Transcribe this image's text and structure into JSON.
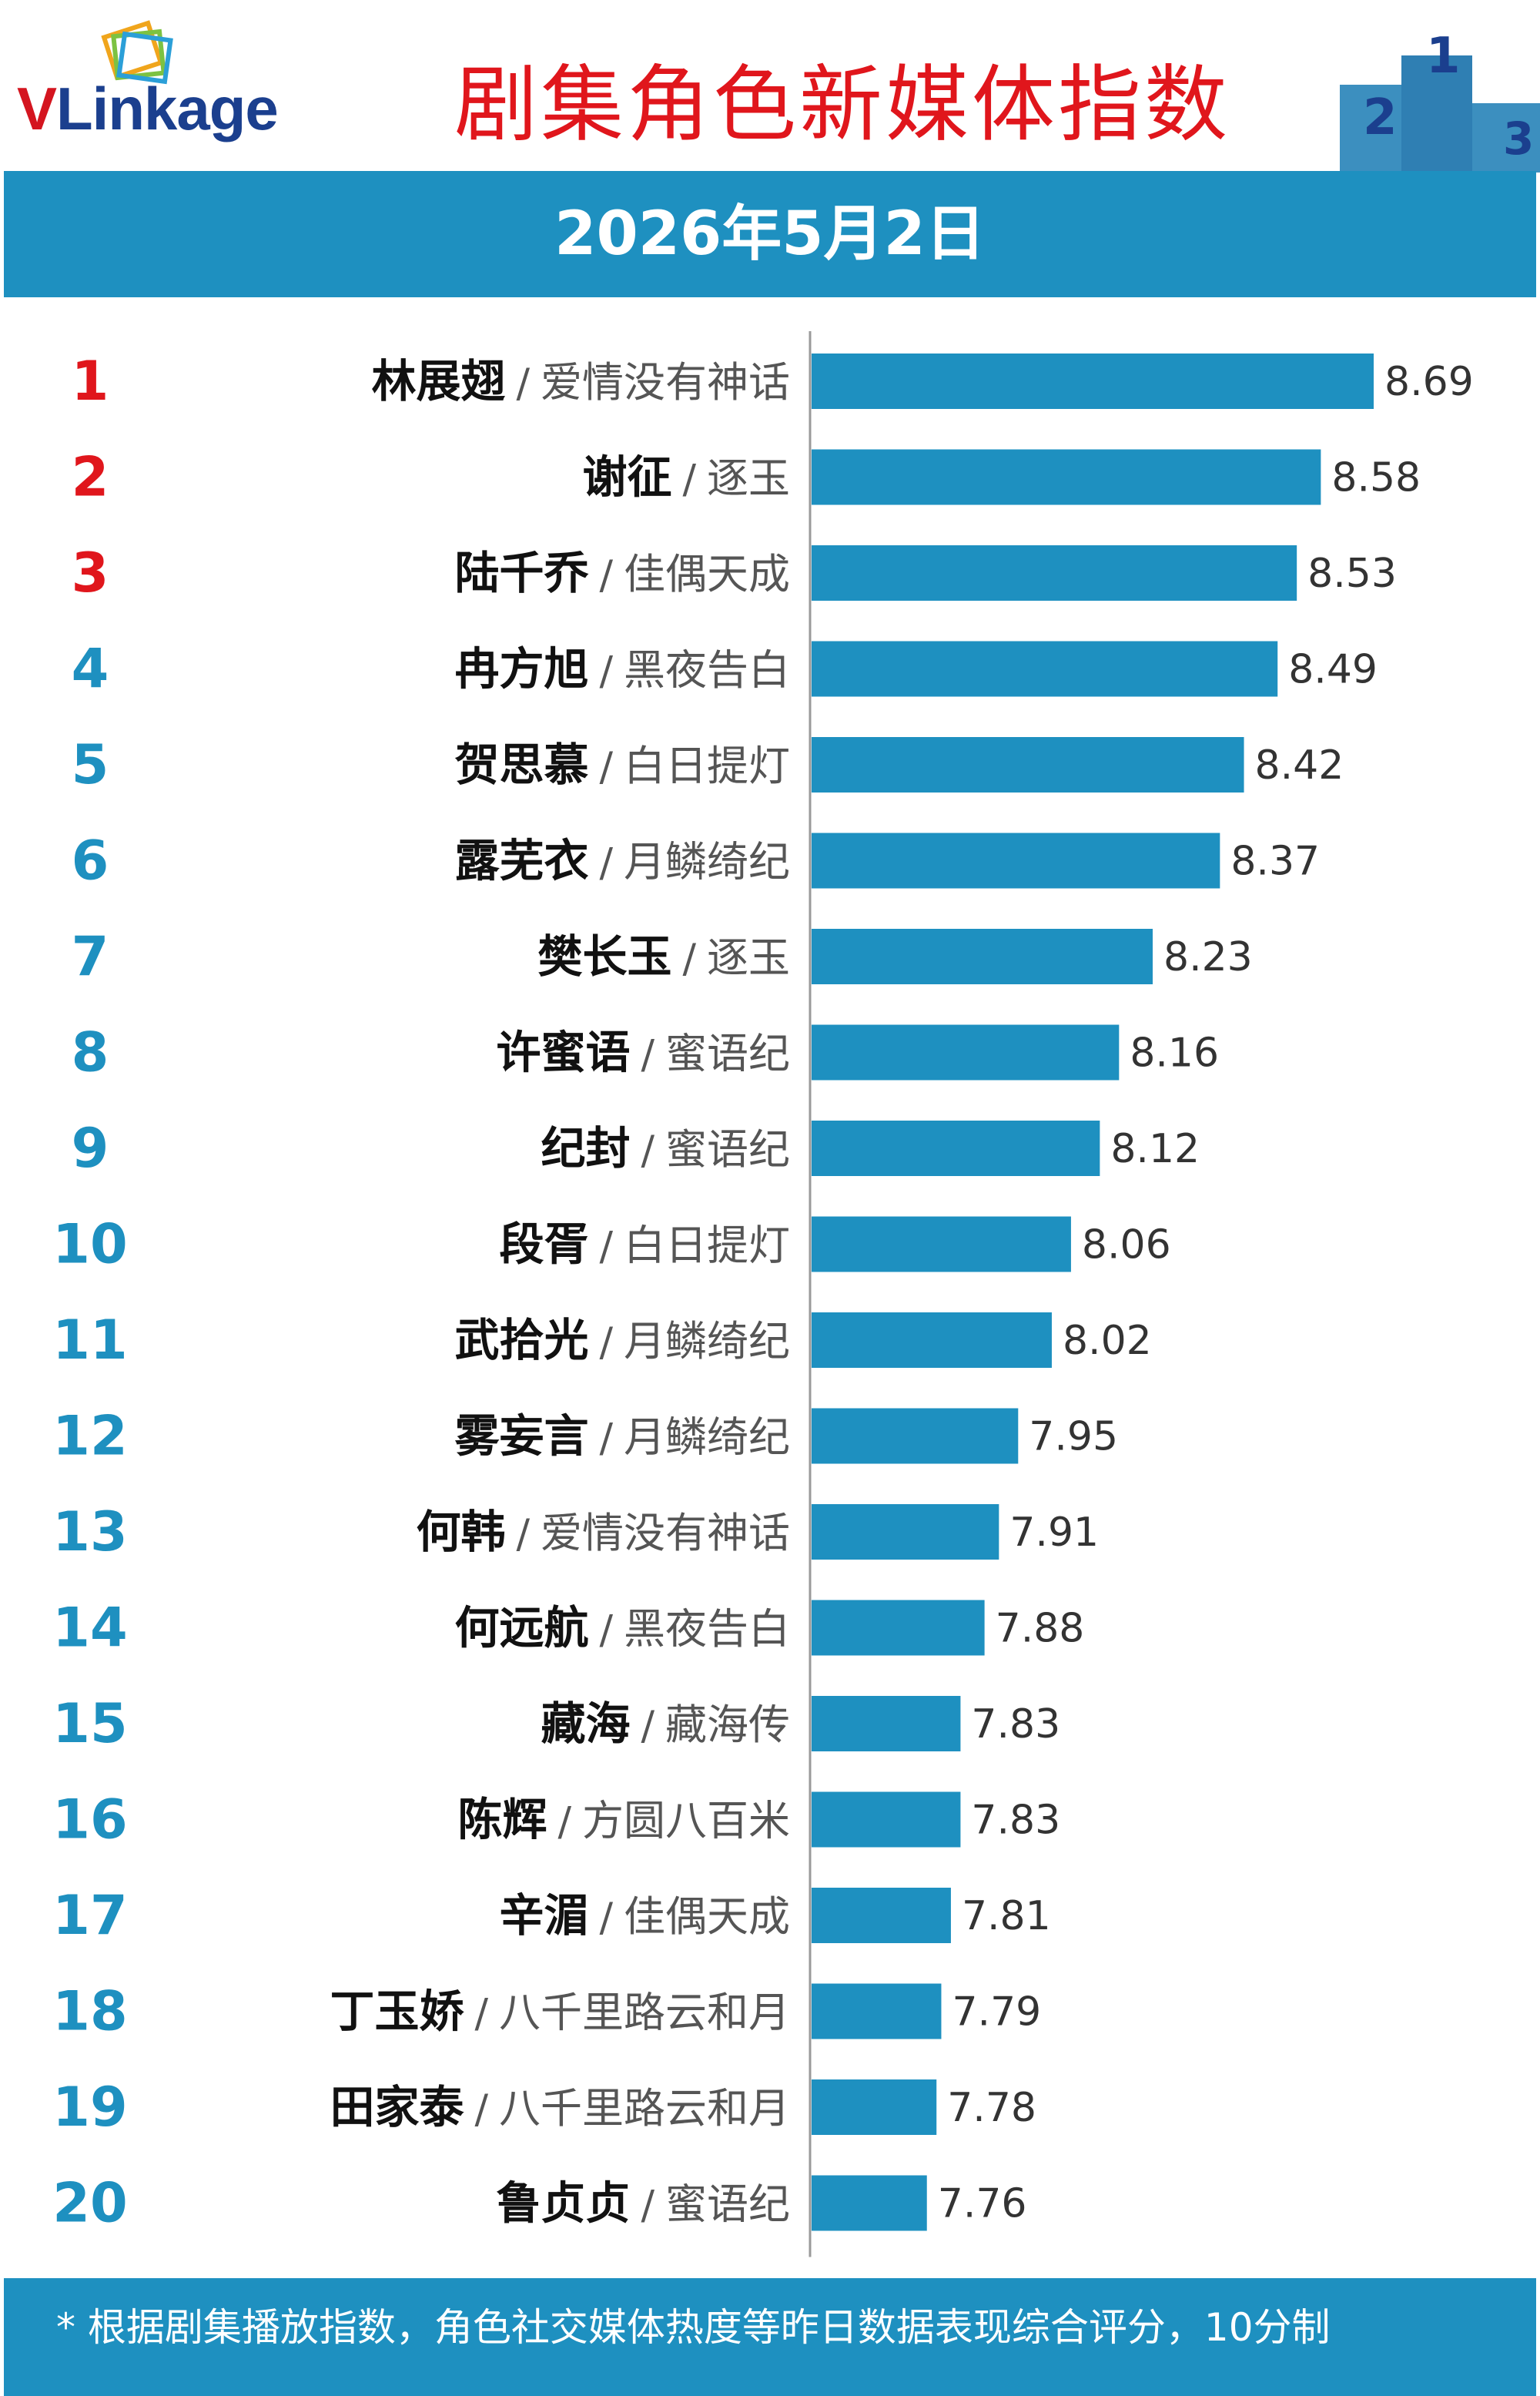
{
  "header": {
    "logo_text": {
      "v": "V",
      "rest": "Linkage"
    },
    "title": "剧集角色新媒体指数",
    "podium": {
      "first": "1",
      "second": "2",
      "third": "3"
    }
  },
  "date": "2026年5月2日",
  "colors": {
    "band": "#1e90c0",
    "bar": "#1e90c0",
    "title": "#e0161c",
    "rank_top3": "#e0161c",
    "rank_other": "#1e90c0"
  },
  "chart_data": {
    "type": "bar",
    "orientation": "horizontal",
    "categories": [
      {
        "rank": "1",
        "name": "林展翅",
        "show": "爱情没有神话"
      },
      {
        "rank": "2",
        "name": "谢征",
        "show": "逐玉"
      },
      {
        "rank": "3",
        "name": "陆千乔",
        "show": "佳偶天成"
      },
      {
        "rank": "4",
        "name": "冉方旭",
        "show": "黑夜告白"
      },
      {
        "rank": "5",
        "name": "贺思慕",
        "show": "白日提灯"
      },
      {
        "rank": "6",
        "name": "露芜衣",
        "show": "月鳞绮纪"
      },
      {
        "rank": "7",
        "name": "樊长玉",
        "show": "逐玉"
      },
      {
        "rank": "8",
        "name": "许蜜语",
        "show": "蜜语纪"
      },
      {
        "rank": "9",
        "name": "纪封",
        "show": "蜜语纪"
      },
      {
        "rank": "10",
        "name": "段胥",
        "show": "白日提灯"
      },
      {
        "rank": "11",
        "name": "武拾光",
        "show": "月鳞绮纪"
      },
      {
        "rank": "12",
        "name": "雾妄言",
        "show": "月鳞绮纪"
      },
      {
        "rank": "13",
        "name": "何韩",
        "show": "爱情没有神话"
      },
      {
        "rank": "14",
        "name": "何远航",
        "show": "黑夜告白"
      },
      {
        "rank": "15",
        "name": "藏海",
        "show": "藏海传"
      },
      {
        "rank": "16",
        "name": "陈辉",
        "show": "方圆八百米"
      },
      {
        "rank": "17",
        "name": "辛湄",
        "show": "佳偶天成"
      },
      {
        "rank": "18",
        "name": "丁玉娇",
        "show": "八千里路云和月"
      },
      {
        "rank": "19",
        "name": "田家泰",
        "show": "八千里路云和月"
      },
      {
        "rank": "20",
        "name": "鲁贞贞",
        "show": "蜜语纪"
      }
    ],
    "values": [
      8.69,
      8.58,
      8.53,
      8.49,
      8.42,
      8.37,
      8.23,
      8.16,
      8.12,
      8.06,
      8.02,
      7.95,
      7.91,
      7.88,
      7.83,
      7.83,
      7.81,
      7.79,
      7.78,
      7.76
    ],
    "value_labels": [
      "8.69",
      "8.58",
      "8.53",
      "8.49",
      "8.42",
      "8.37",
      "8.23",
      "8.16",
      "8.12",
      "8.06",
      "8.02",
      "7.95",
      "7.91",
      "7.88",
      "7.83",
      "7.83",
      "7.81",
      "7.79",
      "7.78",
      "7.76"
    ],
    "separator": "/",
    "title": "",
    "xlabel": "",
    "ylabel": "",
    "xlim": [
      7.52,
      8.69
    ],
    "grid": false,
    "legend": "none"
  },
  "footer": {
    "note": "* 根据剧集播放指数，角色社交媒体热度等昨日数据表现综合评分，10分制",
    "watermark": ""
  }
}
